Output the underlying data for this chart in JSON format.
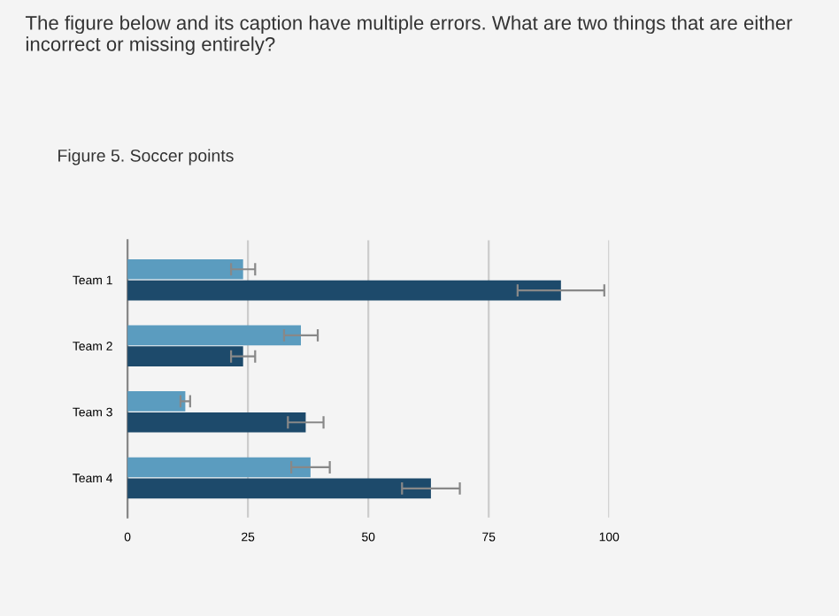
{
  "chart_data": {
    "type": "bar",
    "orientation": "horizontal",
    "title": "Figure 5. Soccer points",
    "annotations": [
      "The figure below and its caption have multiple errors. What are two things that are either incorrect or missing entirely?"
    ],
    "categories": [
      "Team 1",
      "Team 2",
      "Team 3",
      "Team 4"
    ],
    "series": [
      {
        "color": "#5b9cbf",
        "values": [
          24,
          36,
          12,
          38
        ],
        "errors": [
          2.5,
          3.5,
          1,
          4
        ]
      },
      {
        "color": "#1d4a6b",
        "values": [
          90,
          24,
          37,
          63
        ],
        "errors": [
          9,
          2.5,
          3.7,
          6
        ]
      }
    ],
    "xlim": [
      0,
      100
    ],
    "xticks": [
      0,
      25,
      50,
      75,
      100
    ],
    "grid": "x"
  }
}
